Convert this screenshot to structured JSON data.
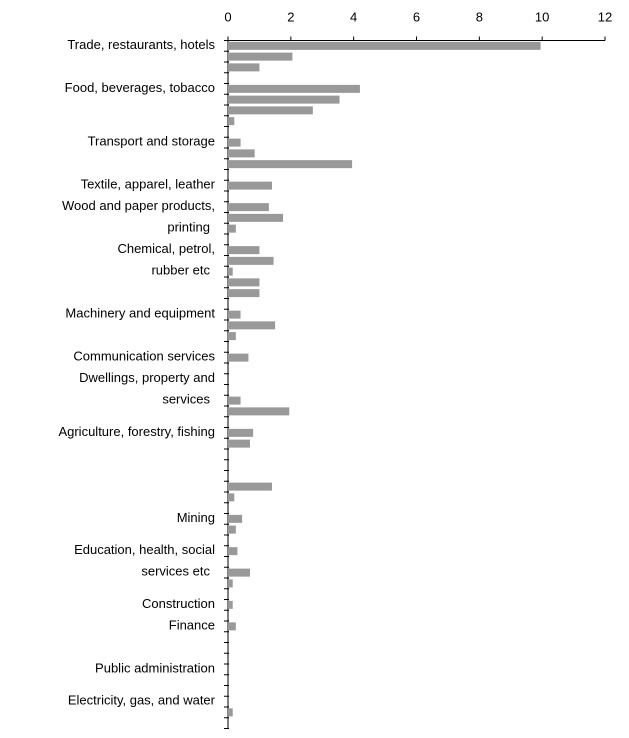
{
  "chart_data": {
    "type": "bar",
    "orientation": "horizontal",
    "color": "#999999",
    "categories": [
      "Trade, restaurants, hotels",
      null,
      null,
      null,
      "Food, beverages, tobacco",
      null,
      null,
      null,
      null,
      "Transport and storage",
      null,
      null,
      null,
      "Textile, apparel, leather",
      null,
      "Wood and paper products,\nprinting",
      null,
      null,
      null,
      "Chemical, petrol,\nrubber etc",
      null,
      null,
      null,
      null,
      null,
      "Machinery and equipment",
      null,
      null,
      null,
      "Communication services",
      null,
      "Dwellings, property and\nservices",
      null,
      null,
      null,
      null,
      "Agriculture, forestry, fishing",
      null,
      null,
      null,
      null,
      null,
      null,
      null,
      "Mining",
      null,
      null,
      "Education, health, social\nservices etc",
      null,
      null,
      null,
      null,
      "Construction",
      null,
      "Finance",
      null,
      null,
      null,
      "Public administration",
      null,
      null,
      "Electricity, gas, and water",
      null,
      null
    ],
    "values": [
      9.95,
      2.05,
      1.0,
      null,
      4.2,
      3.55,
      2.7,
      0.2,
      null,
      0.4,
      0.85,
      3.95,
      null,
      1.4,
      null,
      1.3,
      1.75,
      0.25,
      null,
      1.0,
      1.45,
      0.15,
      1.0,
      1.0,
      null,
      0.4,
      1.5,
      0.25,
      null,
      0.65,
      null,
      null,
      null,
      0.4,
      1.95,
      null,
      0.8,
      0.7,
      null,
      null,
      null,
      1.4,
      0.2,
      null,
      0.45,
      0.25,
      null,
      0.3,
      null,
      0.7,
      0.15,
      null,
      0.15,
      null,
      0.25,
      null,
      null,
      null,
      null,
      null,
      null,
      null,
      0.15,
      null
    ],
    "xlim": [
      0,
      12
    ],
    "xticks": [
      0,
      2,
      4,
      6,
      8,
      10,
      12
    ]
  }
}
